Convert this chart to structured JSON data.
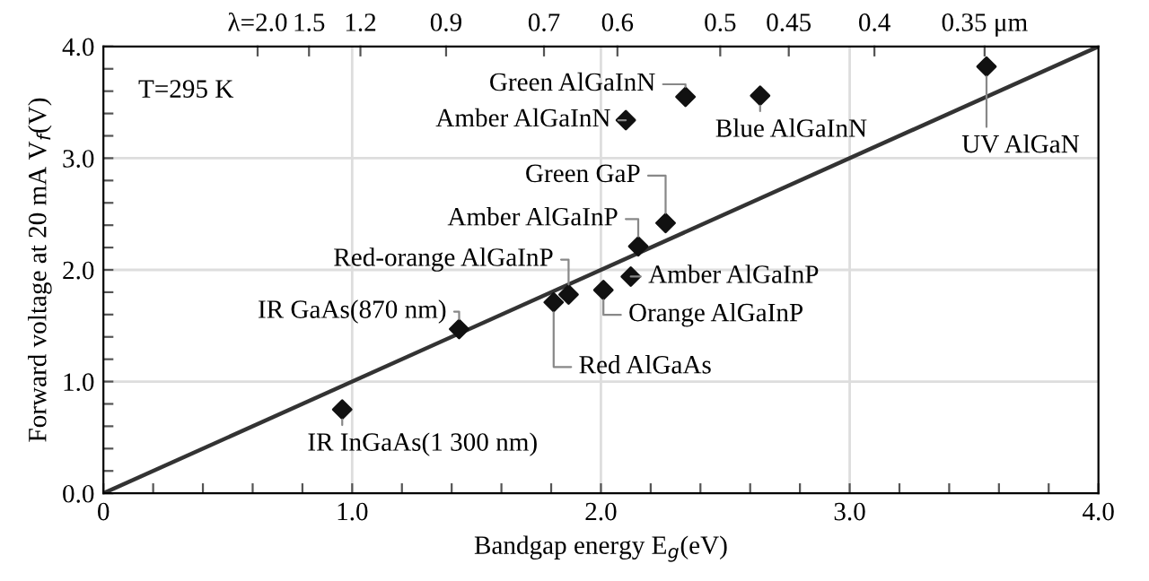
{
  "chart_data": {
    "type": "scatter",
    "xlabel": "Bandgap energy E$_{g}$(eV)",
    "ylabel": "Forward voltage at 20 mA V$_{f}$(V)",
    "xlim": [
      0,
      4
    ],
    "ylim": [
      0,
      4
    ],
    "xticks": [
      0,
      {
        "value": 0.2,
        "label": null
      },
      {
        "value": 0.4,
        "label": null
      },
      {
        "value": 0.6,
        "label": null
      },
      {
        "value": 0.8,
        "label": null
      },
      {
        "value": 1,
        "label": "1.0"
      },
      {
        "value": 1.2,
        "label": null
      },
      {
        "value": 1.4,
        "label": null
      },
      {
        "value": 1.6,
        "label": null
      },
      {
        "value": 1.8,
        "label": null
      },
      {
        "value": 2,
        "label": "2.0"
      },
      {
        "value": 2.2,
        "label": null
      },
      {
        "value": 2.4,
        "label": null
      },
      {
        "value": 2.6,
        "label": null
      },
      {
        "value": 2.8,
        "label": null
      },
      {
        "value": 3,
        "label": "3.0"
      },
      {
        "value": 3.2,
        "label": null
      },
      {
        "value": 3.4,
        "label": null
      },
      {
        "value": 3.6,
        "label": null
      },
      {
        "value": 3.8,
        "label": null
      },
      {
        "value": 4,
        "label": "4.0"
      }
    ],
    "yticks": [
      {
        "value": 0,
        "label": "0.0"
      },
      {
        "value": 0.2,
        "label": null
      },
      {
        "value": 0.4,
        "label": null
      },
      {
        "value": 0.6,
        "label": null
      },
      {
        "value": 0.8,
        "label": null
      },
      {
        "value": 1,
        "label": "1.0"
      },
      {
        "value": 1.2,
        "label": null
      },
      {
        "value": 1.4,
        "label": null
      },
      {
        "value": 1.6,
        "label": null
      },
      {
        "value": 1.8,
        "label": null
      },
      {
        "value": 2,
        "label": "2.0"
      },
      {
        "value": 2.2,
        "label": null
      },
      {
        "value": 2.4,
        "label": null
      },
      {
        "value": 2.6,
        "label": null
      },
      {
        "value": 2.8,
        "label": null
      },
      {
        "value": 3,
        "label": "3.0"
      },
      {
        "value": 3.2,
        "label": null
      },
      {
        "value": 3.4,
        "label": null
      },
      {
        "value": 3.6,
        "label": null
      },
      {
        "value": 3.8,
        "label": null
      },
      {
        "value": 4,
        "label": "4.0"
      }
    ],
    "grid": true,
    "marker": "diamond",
    "series": [
      {
        "color": "#111111",
        "x": [
          2.34,
          2.1,
          2.64,
          3.55,
          2.26,
          2.15,
          2.12,
          2.01,
          1.81,
          1.87,
          1.43,
          0.96
        ],
        "values": [
          3.55,
          3.34,
          3.56,
          3.82,
          2.42,
          2.21,
          1.94,
          1.82,
          1.71,
          1.78,
          1.47,
          0.75
        ]
      },
      {
        "type": "line",
        "color": "#333333",
        "marker": "none",
        "x": [
          0,
          4
        ],
        "values": [
          0,
          4
        ]
      }
    ],
    "annotations": [
      "T=295 K",
      "λ=2.0",
      "1.5",
      "1.2",
      "0.9",
      "0.7",
      "0.6",
      "0.5",
      "0.45",
      "0.4",
      "0.35 μm",
      {
        "text": "Green AlGaInN",
        "x": 2.34,
        "y": 3.55
      },
      {
        "text": "Amber AlGaInN",
        "x": 2.1,
        "y": 3.34
      },
      {
        "text": "Blue AlGaInN",
        "x": 2.64,
        "y": 3.56
      },
      {
        "text": "UV AlGaN",
        "x": 3.55,
        "y": 3.82
      },
      {
        "text": "Green GaP",
        "x": 2.26,
        "y": 2.42
      },
      {
        "text": "Amber AlGaInP",
        "x": 2.15,
        "y": 2.21
      },
      {
        "text": "Amber AlGaInP",
        "x": 2.12,
        "y": 1.94
      },
      {
        "text": "Orange AlGaInP",
        "x": 2.01,
        "y": 1.82
      },
      {
        "text": "Red AlGaAs",
        "x": 1.81,
        "y": 1.71
      },
      {
        "text": "Red-orange AlGaInP",
        "x": 1.87,
        "y": 1.78
      },
      {
        "text": "IR GaAs(870 nm)",
        "x": 1.43,
        "y": 1.47
      },
      {
        "text": "IR InGaAs(1 300 nm)",
        "x": 0.96,
        "y": 0.75
      }
    ]
  }
}
